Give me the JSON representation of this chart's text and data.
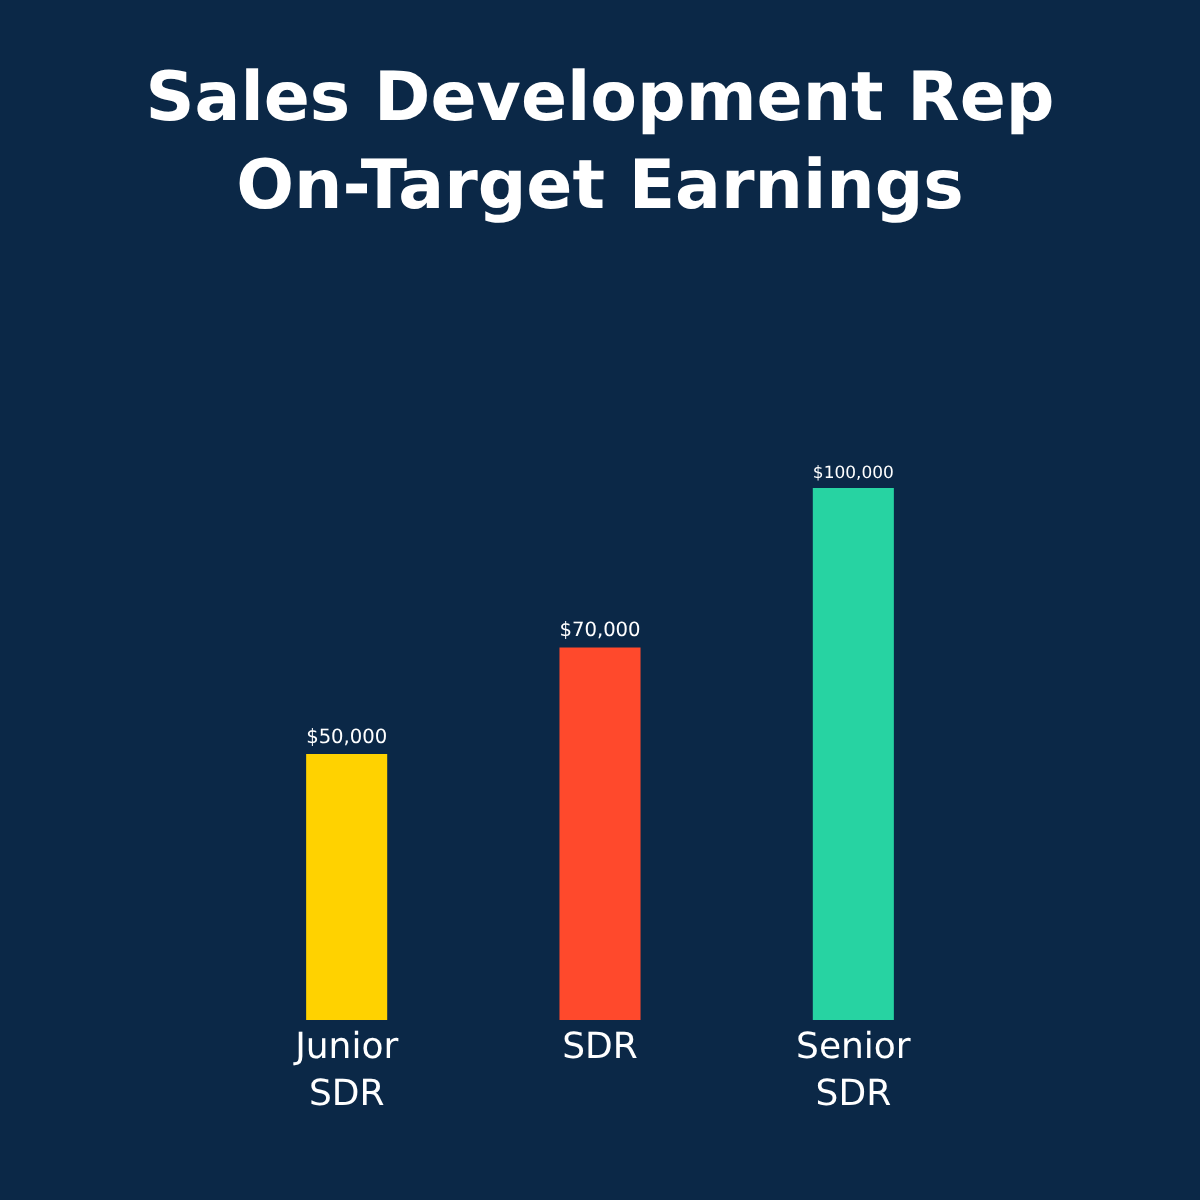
{
  "chart_data": {
    "type": "bar",
    "title": "Sales Development Rep\nOn-Target Earnings",
    "categories": [
      "Junior\nSDR",
      "SDR",
      "Senior\nSDR"
    ],
    "values": [
      50000,
      70000,
      100000
    ],
    "colors": [
      "#ffd200",
      "#ff492c",
      "#27d3a2"
    ],
    "value_labels": [
      "$50,000",
      "$70,000",
      "$100,000"
    ],
    "grid": false,
    "legend": false
  }
}
